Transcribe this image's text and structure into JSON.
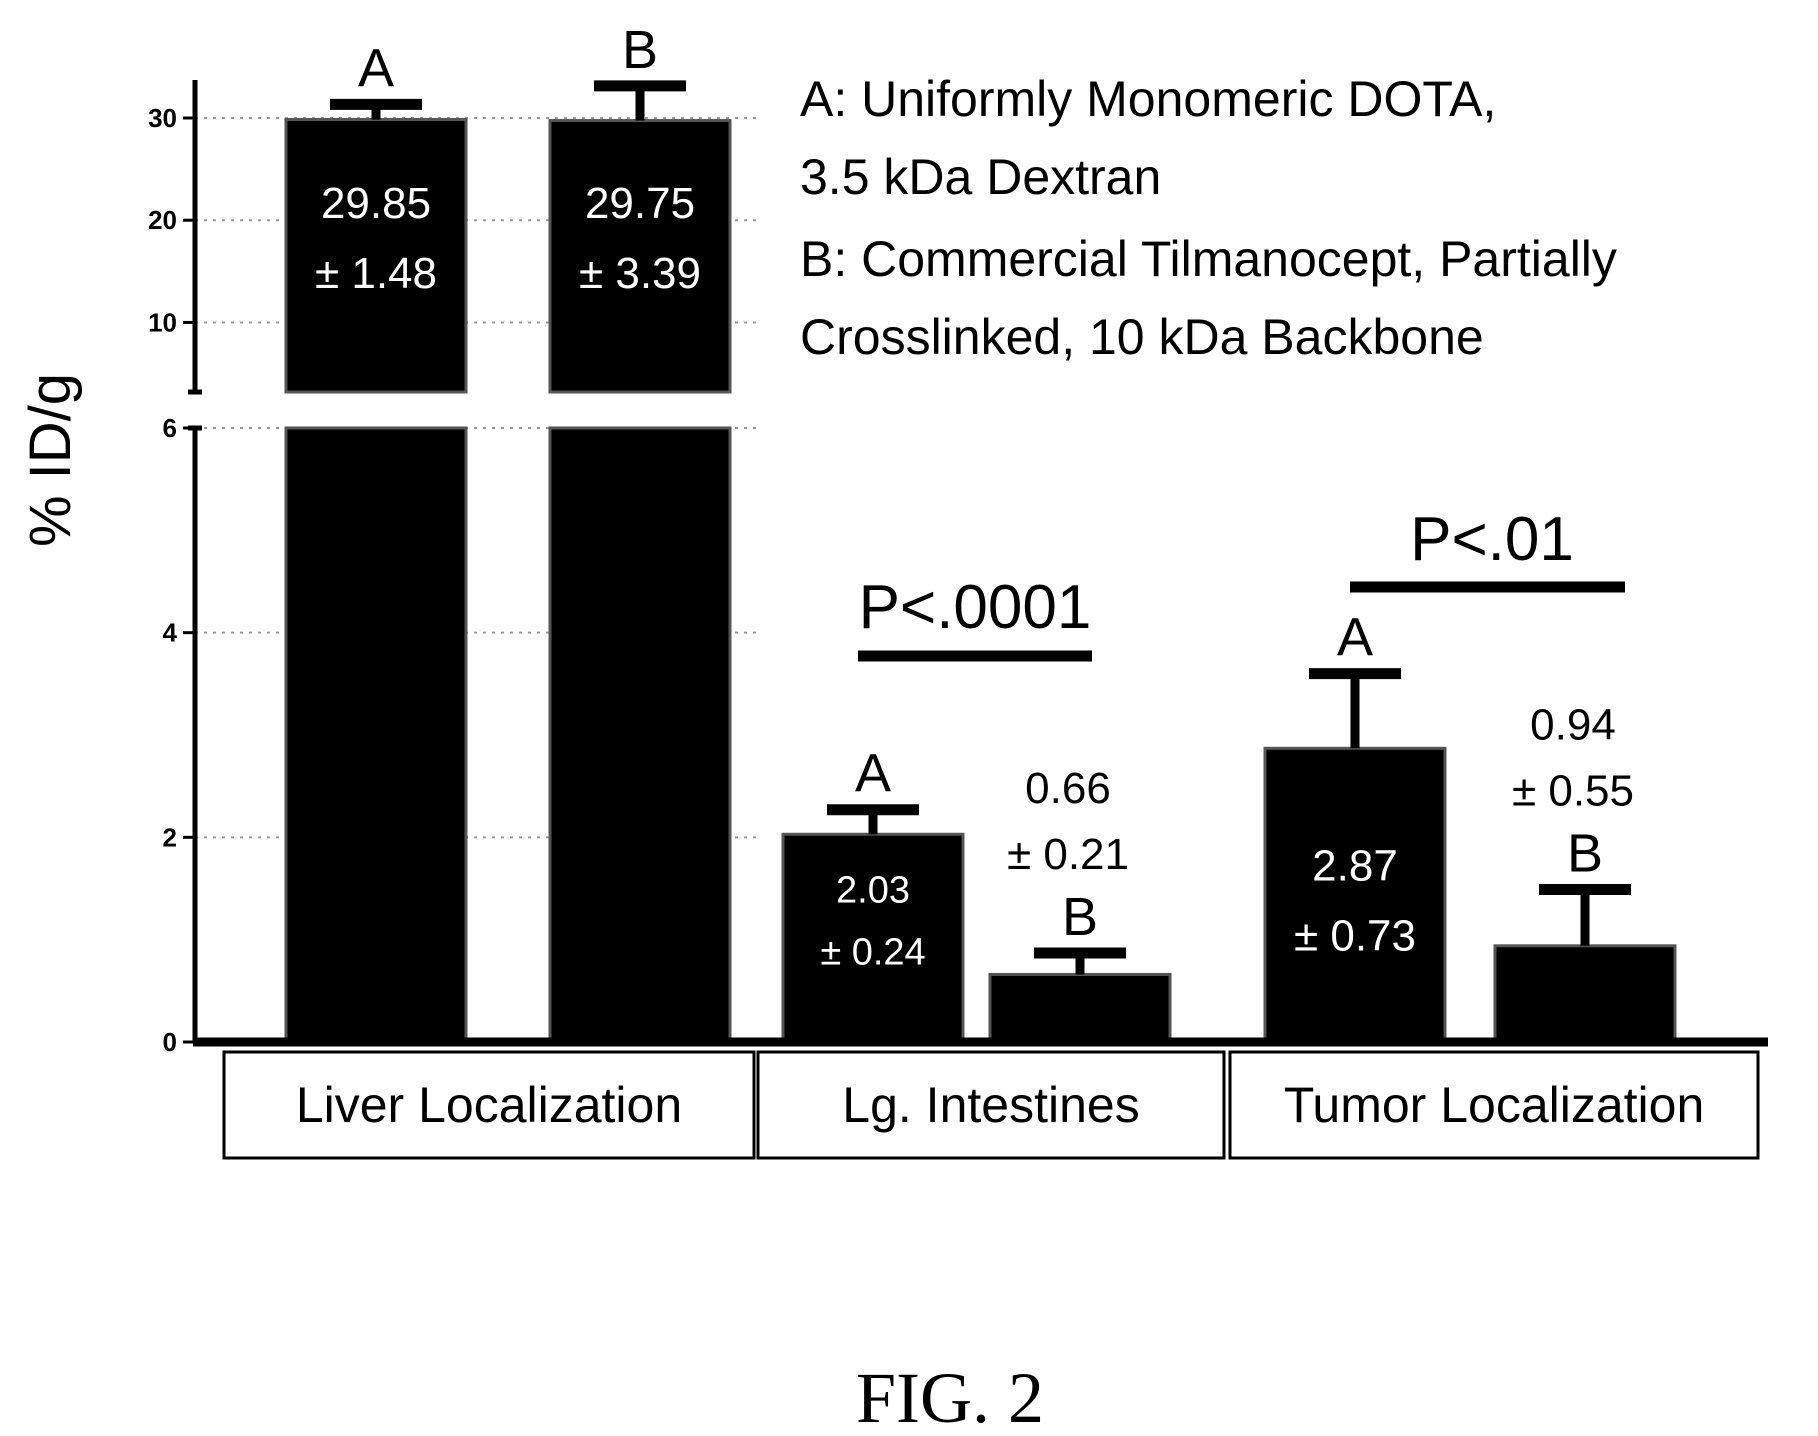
{
  "chart_data": {
    "type": "bar",
    "ylabel": "% ID/g",
    "y_axis_break": {
      "lower_range": [
        0,
        6
      ],
      "upper_range": [
        6,
        30
      ],
      "lower_ticks": [
        "0",
        "2",
        "4",
        "6"
      ],
      "upper_ticks": [
        "10",
        "20",
        "30"
      ]
    },
    "grid": "dotted horizontal",
    "legend": [
      {
        "text": "A: Uniformly Monomeric DOTA,"
      },
      {
        "text": "3.5 kDa Dextran"
      },
      {
        "text": "B: Commercial Tilmanocept, Partially"
      },
      {
        "text": "Crosslinked, 10 kDa Backbone"
      }
    ],
    "categories": [
      "Liver Localization",
      "Lg. Intestines",
      "Tumor Localization"
    ],
    "series": [
      {
        "name": "A",
        "values": [
          29.85,
          2.03,
          2.87
        ],
        "errors": [
          1.48,
          0.24,
          0.73
        ]
      },
      {
        "name": "B",
        "values": [
          29.75,
          0.66,
          0.94
        ],
        "errors": [
          3.39,
          0.21,
          0.55
        ]
      }
    ],
    "bar_value_labels": [
      {
        "mean": "29.85",
        "err": "± 1.48"
      },
      {
        "mean": "29.75",
        "err": "± 3.39"
      },
      {
        "mean": "2.03",
        "err": "± 0.24"
      },
      {
        "mean": "0.66",
        "err": "± 0.21"
      },
      {
        "mean": "2.87",
        "err": "± 0.73"
      },
      {
        "mean": "0.94",
        "err": "± 0.55"
      }
    ],
    "significance": [
      {
        "category": "Lg. Intestines",
        "text": "P<.0001"
      },
      {
        "category": "Tumor Localization",
        "text": "P<.01"
      }
    ],
    "bar_color": "#000000"
  },
  "caption": "FIG. 2"
}
